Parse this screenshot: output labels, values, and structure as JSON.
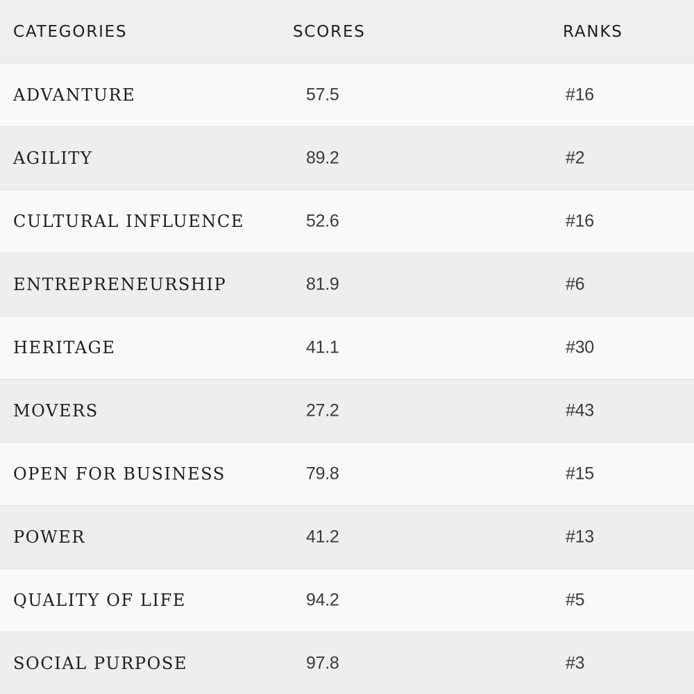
{
  "headers": {
    "categories": "CATEGORIES",
    "scores": "SCORES",
    "ranks": "RANKS"
  },
  "rows": [
    {
      "category": "ADVANTURE",
      "score": "57.5",
      "rank": "#16"
    },
    {
      "category": "AGILITY",
      "score": "89.2",
      "rank": "#2"
    },
    {
      "category": "CULTURAL INFLUENCE",
      "score": "52.6",
      "rank": "#16"
    },
    {
      "category": "ENTREPRENEURSHIP",
      "score": "81.9",
      "rank": "#6"
    },
    {
      "category": "HERITAGE",
      "score": "41.1",
      "rank": "#30"
    },
    {
      "category": "MOVERS",
      "score": "27.2",
      "rank": "#43"
    },
    {
      "category": "OPEN FOR BUSINESS",
      "score": "79.8",
      "rank": "#15"
    },
    {
      "category": "POWER",
      "score": "41.2",
      "rank": "#13"
    },
    {
      "category": "QUALITY OF LIFE",
      "score": "94.2",
      "rank": "#5"
    },
    {
      "category": "SOCIAL PURPOSE",
      "score": "97.8",
      "rank": "#3"
    }
  ]
}
